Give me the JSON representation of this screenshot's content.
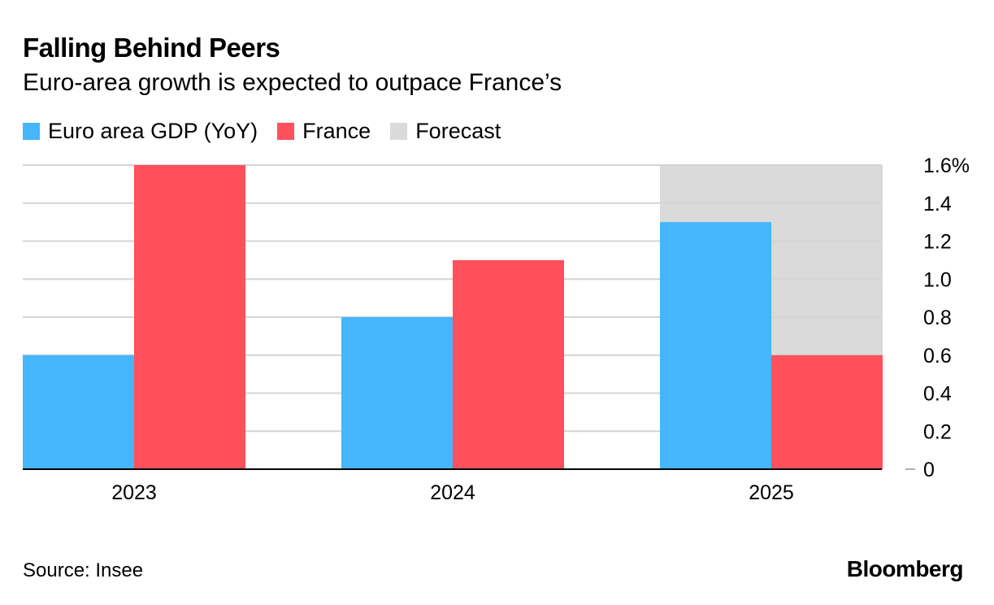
{
  "chart_data": {
    "type": "bar",
    "title": "Falling Behind Peers",
    "subtitle": "Euro-area growth is expected to outpace France’s",
    "categories": [
      "2023",
      "2024",
      "2025"
    ],
    "series": [
      {
        "name": "Euro area GDP (YoY)",
        "color": "#45B6FC",
        "values": [
          0.6,
          0.8,
          1.3
        ]
      },
      {
        "name": "France",
        "color": "#FF505C",
        "values": [
          1.6,
          1.1,
          0.6
        ]
      }
    ],
    "forecast": {
      "label": "Forecast",
      "color": "#DADADA",
      "category": "2025"
    },
    "ylim": [
      0,
      1.6
    ],
    "yticks": [
      0,
      0.2,
      0.4,
      0.6,
      0.8,
      1.0,
      1.2,
      1.4,
      1.6
    ],
    "ytick_labels": [
      "0",
      "0.2",
      "0.4",
      "0.6",
      "0.8",
      "1.0",
      "1.2",
      "1.4",
      "1.6%"
    ],
    "y_axis_side": "right",
    "grid": true,
    "legend_position": "top-left"
  },
  "footer": {
    "source": "Source: Insee",
    "brand": "Bloomberg"
  }
}
